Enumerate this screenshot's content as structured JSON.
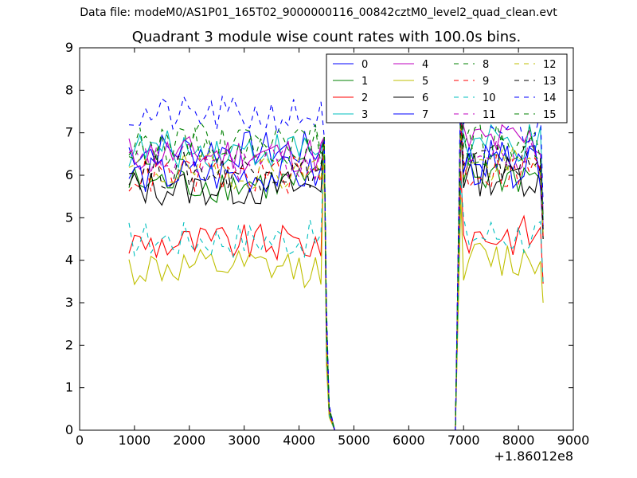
{
  "suptitle": "Data file: modeM0/AS1P01_165T02_9000000116_00842cztM0_level2_quad_clean.evt",
  "chart_data": {
    "type": "line",
    "title": "Quadrant 3 module wise count rates with 100.0s bins.",
    "xlabel": "",
    "ylabel": "",
    "x_offset_label": "+1.86012e8",
    "xlim": [
      0,
      9000
    ],
    "ylim": [
      0,
      9
    ],
    "xticks": [
      0,
      1000,
      2000,
      3000,
      4000,
      5000,
      6000,
      7000,
      8000,
      9000
    ],
    "yticks": [
      0,
      1,
      2,
      3,
      4,
      5,
      6,
      7,
      8,
      9
    ],
    "legend_position": "top-right",
    "segments": [
      {
        "x_start": 900,
        "x_end": 4400,
        "x_step": 100
      },
      {
        "x_start": 4500,
        "x_end": 4700,
        "x_step": 100
      },
      {
        "x_start": 6800,
        "x_end": 8400,
        "x_step": 100
      }
    ],
    "drop_points": {
      "x": [
        4500,
        4550,
        4650,
        6850,
        6900
      ],
      "fraction": [
        1.0,
        0.1,
        0.0,
        0.0,
        1.0
      ]
    },
    "series": [
      {
        "name": "0",
        "color": "#0000ff",
        "dash": "solid",
        "level_first": 6.6,
        "level_second": 6.4
      },
      {
        "name": "1",
        "color": "#008000",
        "dash": "solid",
        "level_first": 5.8,
        "level_second": 6.0
      },
      {
        "name": "2",
        "color": "#ff0000",
        "dash": "solid",
        "level_first": 4.4,
        "level_second": 4.6
      },
      {
        "name": "3",
        "color": "#00bfbf",
        "dash": "solid",
        "level_first": 6.6,
        "level_second": 6.7
      },
      {
        "name": "4",
        "color": "#bf00bf",
        "dash": "solid",
        "level_first": 6.5,
        "level_second": 6.8
      },
      {
        "name": "5",
        "color": "#bfbf00",
        "dash": "solid",
        "level_first": 3.8,
        "level_second": 4.0
      },
      {
        "name": "6",
        "color": "#000000",
        "dash": "solid",
        "level_first": 5.7,
        "level_second": 6.0
      },
      {
        "name": "7",
        "color": "#0000ff",
        "dash": "solid",
        "level_first": 6.0,
        "level_second": 6.2
      },
      {
        "name": "8",
        "color": "#008000",
        "dash": "dashed",
        "level_first": 6.7,
        "level_second": 6.6
      },
      {
        "name": "9",
        "color": "#ff0000",
        "dash": "dashed",
        "level_first": 6.0,
        "level_second": 6.1
      },
      {
        "name": "10",
        "color": "#00bfbf",
        "dash": "dashed",
        "level_first": 4.5,
        "level_second": 4.6
      },
      {
        "name": "11",
        "color": "#bf00bf",
        "dash": "dashed",
        "level_first": 6.3,
        "level_second": 6.4
      },
      {
        "name": "12",
        "color": "#bfbf00",
        "dash": "dashed",
        "level_first": 6.1,
        "level_second": 6.2
      },
      {
        "name": "13",
        "color": "#000000",
        "dash": "dashed",
        "level_first": 6.1,
        "level_second": 6.3
      },
      {
        "name": "14",
        "color": "#0000ff",
        "dash": "dashed",
        "level_first": 7.4,
        "level_second": 7.1
      },
      {
        "name": "15",
        "color": "#008000",
        "dash": "dashed",
        "level_first": 6.8,
        "level_second": 6.7
      }
    ]
  }
}
